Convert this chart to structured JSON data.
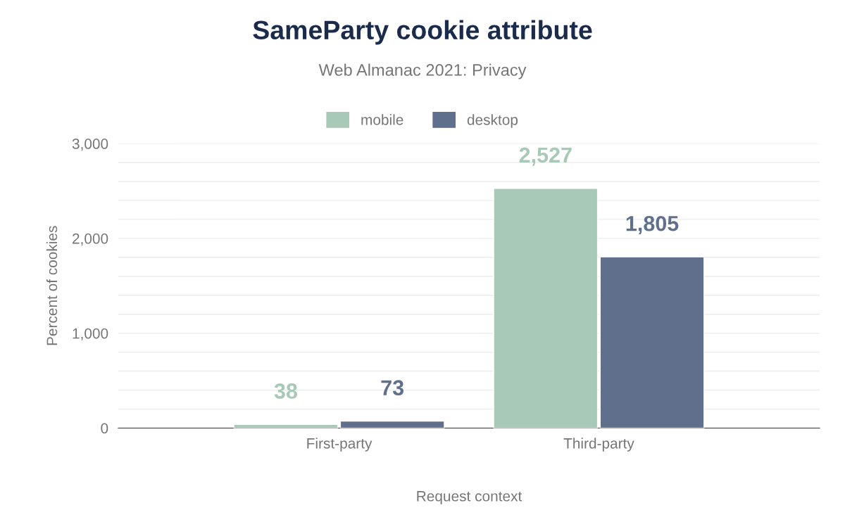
{
  "chart_data": {
    "type": "bar",
    "title": "SameParty cookie attribute",
    "subtitle": "Web Almanac 2021: Privacy",
    "xlabel": "Request context",
    "ylabel": "Percent of cookies",
    "categories": [
      "First-party",
      "Third-party"
    ],
    "series": [
      {
        "name": "mobile",
        "color": "#a8c8b8",
        "values": [
          38,
          2527
        ],
        "value_labels": [
          "38",
          "2,527"
        ]
      },
      {
        "name": "desktop",
        "color": "#5f6f8c",
        "values": [
          73,
          1805
        ],
        "value_labels": [
          "73",
          "1,805"
        ]
      }
    ],
    "ylim": [
      0,
      3000
    ],
    "yticks": [
      {
        "value": 0,
        "label": "0"
      },
      {
        "value": 200,
        "label": null
      },
      {
        "value": 400,
        "label": null
      },
      {
        "value": 600,
        "label": null
      },
      {
        "value": 800,
        "label": null
      },
      {
        "value": 1000,
        "label": "1,000"
      },
      {
        "value": 1200,
        "label": null
      },
      {
        "value": 1400,
        "label": null
      },
      {
        "value": 1600,
        "label": null
      },
      {
        "value": 1800,
        "label": null
      },
      {
        "value": 2000,
        "label": "2,000"
      },
      {
        "value": 2200,
        "label": null
      },
      {
        "value": 2400,
        "label": null
      },
      {
        "value": 2600,
        "label": null
      },
      {
        "value": 2800,
        "label": null
      },
      {
        "value": 3000,
        "label": "3,000"
      }
    ],
    "grid": "y",
    "legend": "top"
  }
}
